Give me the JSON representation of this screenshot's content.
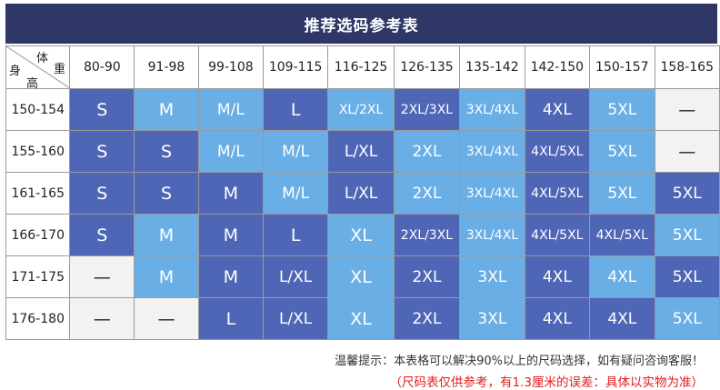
{
  "title": "推荐选码参考表",
  "corner": {
    "weight_label_1": "体",
    "weight_label_2": "重",
    "height_label_1": "身",
    "height_label_2": "高"
  },
  "weights": [
    "80-90",
    "91-98",
    "99-108",
    "109-115",
    "116-125",
    "126-135",
    "135-142",
    "142-150",
    "150-157",
    "158-165"
  ],
  "heights": [
    "150-154",
    "155-160",
    "161-165",
    "166-170",
    "171-175",
    "176-180"
  ],
  "rows": [
    [
      "S",
      "M",
      "M/L",
      "L",
      "XL/2XL",
      "2XL/3XL",
      "3XL/4XL",
      "4XL",
      "5XL",
      "—"
    ],
    [
      "S",
      "S",
      "M/L",
      "M/L",
      "L/XL",
      "2XL",
      "3XL/4XL",
      "4XL/5XL",
      "5XL",
      "—"
    ],
    [
      "S",
      "S",
      "M",
      "M/L",
      "L/XL",
      "2XL",
      "3XL/4XL",
      "4XL/5XL",
      "5XL",
      "5XL"
    ],
    [
      "S",
      "M",
      "M",
      "L",
      "XL",
      "2XL/3XL",
      "3XL/4XL",
      "4XL/5XL",
      "4XL/5XL",
      "5XL"
    ],
    [
      "—",
      "M",
      "M",
      "L/XL",
      "XL",
      "2XL",
      "3XL",
      "4XL",
      "4XL",
      "5XL"
    ],
    [
      "—",
      "—",
      "L",
      "L/XL",
      "XL",
      "2XL",
      "3XL",
      "4XL",
      "4XL",
      "5XL"
    ]
  ],
  "cell_tones": [
    [
      "d",
      "l",
      "l",
      "d",
      "l",
      "d",
      "l",
      "d",
      "l",
      "e"
    ],
    [
      "d",
      "d",
      "l",
      "l",
      "d",
      "l",
      "l",
      "d",
      "l",
      "e"
    ],
    [
      "d",
      "d",
      "d",
      "l",
      "d",
      "l",
      "l",
      "d",
      "l",
      "d"
    ],
    [
      "d",
      "l",
      "d",
      "d",
      "l",
      "d",
      "l",
      "d",
      "d",
      "l"
    ],
    [
      "e",
      "l",
      "d",
      "d",
      "l",
      "d",
      "l",
      "d",
      "l",
      "d"
    ],
    [
      "e",
      "e",
      "d",
      "d",
      "l",
      "d",
      "l",
      "d",
      "d",
      "l"
    ]
  ],
  "colors": {
    "title_bar": "#2e3766",
    "dark_cell": "#4f66b6",
    "light_cell": "#6aaee6",
    "empty_cell": "#f2f2f2",
    "note_red": "#e11b1b"
  },
  "notes": {
    "tip": "温馨提示：本表格可以解决90%以上的尺码选择，如有疑问咨询客服！",
    "disclaimer": "（尺码表仅供参考，有1.3厘米的误差：具体以实物为准）"
  }
}
